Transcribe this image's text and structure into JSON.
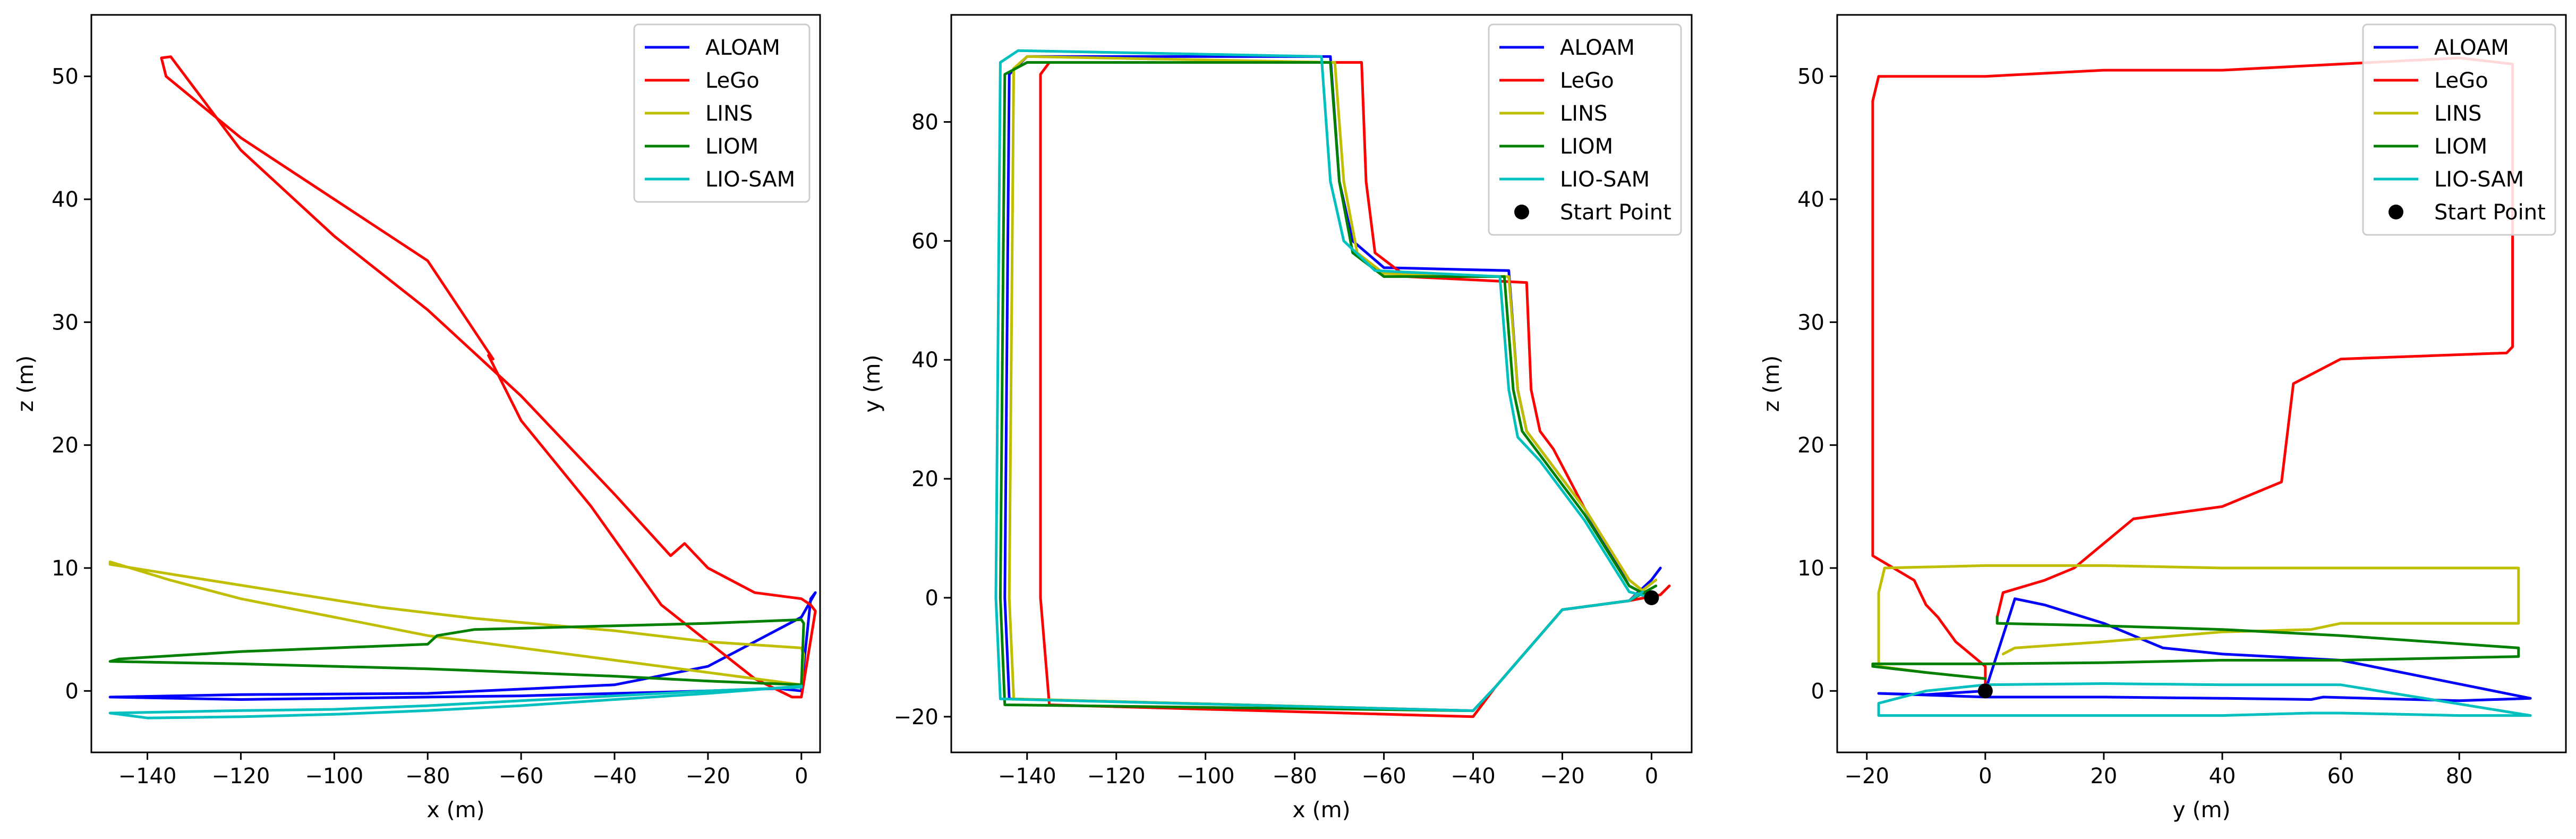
{
  "colors": {
    "ALOAM": "#0000ff",
    "LeGo": "#ff0000",
    "LINS": "#bfbf00",
    "LIOM": "#008000",
    "LIO-SAM": "#00bfbf",
    "start": "#000000"
  },
  "chart_data": [
    {
      "type": "line",
      "xlabel": "x (m)",
      "ylabel": "z (m)",
      "xlim": [
        -152,
        4
      ],
      "ylim": [
        -5,
        55
      ],
      "xticks": [
        -140,
        -120,
        -100,
        -80,
        -60,
        -40,
        -20,
        0
      ],
      "yticks": [
        0,
        10,
        20,
        30,
        40,
        50
      ],
      "legend": "top-right",
      "start_point": null,
      "series": [
        {
          "name": "ALOAM",
          "x": [
            0,
            -5,
            -20,
            -40,
            -60,
            -80,
            -100,
            -120,
            -148,
            -120,
            -80,
            -40,
            -20,
            -10,
            0,
            3,
            2,
            0
          ],
          "y": [
            0,
            0.2,
            0,
            -0.2,
            -0.4,
            -0.5,
            -0.6,
            -0.7,
            -0.5,
            -0.3,
            -0.2,
            0.5,
            2,
            4,
            6,
            8,
            7.5,
            0.2
          ]
        },
        {
          "name": "LeGo",
          "x": [
            0,
            -2,
            -10,
            -20,
            -30,
            -45,
            -60,
            -67,
            -66,
            -80,
            -100,
            -120,
            -136,
            -137,
            -135,
            -120,
            -100,
            -80,
            -60,
            -40,
            -28,
            -25,
            -20,
            -10,
            0,
            2,
            3,
            0
          ],
          "y": [
            -0.5,
            -0.5,
            1,
            4,
            7,
            15,
            22,
            27.3,
            27,
            35,
            40,
            45,
            50,
            51.5,
            51.6,
            44,
            37,
            31,
            24,
            16,
            11,
            12,
            10,
            8,
            7.5,
            7,
            6.5,
            -0.5
          ]
        },
        {
          "name": "LINS",
          "x": [
            0,
            -20,
            -40,
            -60,
            -80,
            -100,
            -120,
            -135,
            -148,
            -148,
            -130,
            -110,
            -90,
            -70,
            -40,
            -20,
            0,
            0.5,
            0
          ],
          "y": [
            0.5,
            1.5,
            2.5,
            3.5,
            4.5,
            6,
            7.5,
            9,
            10.5,
            10.3,
            9.2,
            8,
            6.8,
            5.9,
            4.9,
            4,
            3.5,
            3,
            0.5
          ]
        },
        {
          "name": "LIOM",
          "x": [
            0,
            -20,
            -40,
            -60,
            -80,
            -100,
            -120,
            -148,
            -146,
            -120,
            -100,
            -80,
            -78,
            -70,
            -60,
            -40,
            -20,
            0,
            0.5,
            0
          ],
          "y": [
            0.5,
            0.8,
            1.2,
            1.5,
            1.8,
            2,
            2.2,
            2.4,
            2.6,
            3.2,
            3.5,
            3.8,
            4.5,
            5,
            5.1,
            5.3,
            5.5,
            5.8,
            5.5,
            0.5
          ]
        },
        {
          "name": "LIO-SAM",
          "x": [
            0,
            -20,
            -40,
            -60,
            -80,
            -100,
            -120,
            -148,
            -140,
            -120,
            -100,
            -80,
            -60,
            -40,
            -20,
            0
          ],
          "y": [
            0.3,
            0,
            -0.4,
            -0.8,
            -1.2,
            -1.5,
            -1.6,
            -1.8,
            -2.2,
            -2.1,
            -1.9,
            -1.6,
            -1.2,
            -0.7,
            -0.2,
            0.4
          ]
        }
      ]
    },
    {
      "type": "line",
      "xlabel": "x (m)",
      "ylabel": "y (m)",
      "xlim": [
        -157,
        9
      ],
      "ylim": [
        -26,
        98
      ],
      "xticks": [
        -140,
        -120,
        -100,
        -80,
        -60,
        -40,
        -20,
        0
      ],
      "yticks": [
        -20,
        0,
        20,
        40,
        60,
        80
      ],
      "legend": "top-right",
      "start_point": {
        "name": "Start Point",
        "x": 0,
        "y": 0
      },
      "series": [
        {
          "name": "ALOAM",
          "x": [
            0,
            -5,
            -15,
            -25,
            -28,
            -30,
            -32,
            -60,
            -67,
            -70,
            -72,
            -140,
            -144,
            -145,
            -144,
            -40,
            -35,
            -20,
            -5,
            0,
            2
          ],
          "y": [
            0,
            2,
            15,
            25,
            28,
            35,
            55,
            55.5,
            60,
            70,
            91,
            91,
            88,
            0,
            -17,
            -19,
            -15,
            -2,
            -0.5,
            3,
            5
          ]
        },
        {
          "name": "LeGo",
          "x": [
            0,
            -5,
            -15,
            -22,
            -25,
            -27,
            -28,
            -55,
            -62,
            -64,
            -65,
            -135,
            -137,
            -137,
            -135,
            -40,
            -35,
            -20,
            -5,
            2,
            4
          ],
          "y": [
            0,
            3,
            15,
            25,
            28,
            35,
            53,
            54,
            58,
            70,
            90,
            90,
            88,
            0,
            -18,
            -20,
            -15,
            -2,
            -0.5,
            0.5,
            2
          ]
        },
        {
          "name": "LINS",
          "x": [
            0,
            -5,
            -15,
            -25,
            -28,
            -30,
            -32,
            -60,
            -66,
            -69,
            -71,
            -140,
            -143,
            -144,
            -143,
            -40,
            -35,
            -20,
            -5,
            1
          ],
          "y": [
            0,
            3,
            15,
            25,
            28,
            35,
            54,
            54.5,
            58,
            70,
            90,
            91,
            89,
            0,
            -17,
            -19,
            -15,
            -2,
            -0.5,
            3
          ]
        },
        {
          "name": "LIOM",
          "x": [
            0,
            -5,
            -15,
            -25,
            -29,
            -31,
            -33,
            -60,
            -67,
            -70,
            -72,
            -140,
            -145,
            -146,
            -145,
            -40,
            -35,
            -20,
            -5,
            1
          ],
          "y": [
            0,
            2,
            14,
            24,
            28,
            35,
            54,
            54,
            58,
            70,
            90,
            90,
            88,
            0,
            -18,
            -19,
            -15,
            -2,
            -0.5,
            2
          ]
        },
        {
          "name": "LIO-SAM",
          "x": [
            0,
            -5,
            -15,
            -25,
            -30,
            -32,
            -34,
            -62,
            -69,
            -72,
            -74,
            -142,
            -146,
            -147,
            -146,
            -40,
            -35,
            -20,
            -5,
            -2
          ],
          "y": [
            0,
            1,
            13,
            23,
            27,
            35,
            54,
            55,
            60,
            70,
            91,
            92,
            90,
            0,
            -17,
            -19,
            -15,
            -2,
            -0.5,
            1
          ]
        }
      ]
    },
    {
      "type": "line",
      "xlabel": "y (m)",
      "ylabel": "z (m)",
      "xlim": [
        -25,
        98
      ],
      "ylim": [
        -5,
        55
      ],
      "xticks": [
        -20,
        0,
        20,
        40,
        60,
        80
      ],
      "yticks": [
        0,
        10,
        20,
        30,
        40,
        50
      ],
      "legend": "top-right",
      "start_point": {
        "name": "Start Point",
        "x": 0,
        "y": 0
      },
      "series": [
        {
          "name": "ALOAM",
          "x": [
            0,
            -10,
            -18,
            0,
            20,
            40,
            55,
            57,
            80,
            92,
            60,
            40,
            30,
            20,
            10,
            5,
            0
          ],
          "y": [
            0,
            -0.3,
            -0.2,
            -0.5,
            -0.5,
            -0.6,
            -0.7,
            -0.5,
            -0.8,
            -0.6,
            2.5,
            3,
            3.5,
            5.5,
            7,
            7.5,
            0
          ]
        },
        {
          "name": "LeGo",
          "x": [
            0,
            0,
            -5,
            -8,
            -10,
            -12,
            -19,
            -19,
            -18,
            0,
            20,
            40,
            60,
            80,
            89,
            89,
            88,
            60,
            52,
            50,
            45,
            40,
            25,
            20,
            15,
            10,
            3,
            2
          ],
          "y": [
            0.5,
            2,
            4,
            6,
            7,
            9,
            11,
            48,
            50,
            50,
            50.5,
            50.5,
            51,
            51.5,
            51,
            28,
            27.5,
            27,
            25,
            17,
            16,
            15,
            14,
            12,
            10,
            9,
            8,
            6
          ]
        },
        {
          "name": "LINS",
          "x": [
            0,
            -10,
            -18,
            -18,
            -17,
            0,
            20,
            40,
            60,
            80,
            90,
            90,
            60,
            55,
            40,
            20,
            5,
            3
          ],
          "y": [
            1,
            1.5,
            2,
            8,
            10,
            10.2,
            10.2,
            10,
            10,
            10,
            10,
            5.5,
            5.5,
            5,
            4.8,
            4,
            3.5,
            3
          ]
        },
        {
          "name": "LIOM",
          "x": [
            0,
            -10,
            -19,
            -19,
            0,
            20,
            40,
            60,
            80,
            90,
            90,
            60,
            40,
            20,
            2,
            2
          ],
          "y": [
            1,
            1.5,
            2,
            2.2,
            2.2,
            2.3,
            2.5,
            2.5,
            2.7,
            2.8,
            3.5,
            4.5,
            5,
            5.3,
            5.5,
            6
          ]
        },
        {
          "name": "LIO-SAM",
          "x": [
            0,
            -10,
            -18,
            -18,
            0,
            20,
            40,
            55,
            60,
            80,
            92,
            60,
            40,
            20,
            0
          ],
          "y": [
            0.5,
            0,
            -1,
            -2,
            -2,
            -2,
            -2,
            -1.8,
            -1.8,
            -2,
            -2,
            0.5,
            0.5,
            0.6,
            0.5
          ]
        }
      ]
    }
  ]
}
